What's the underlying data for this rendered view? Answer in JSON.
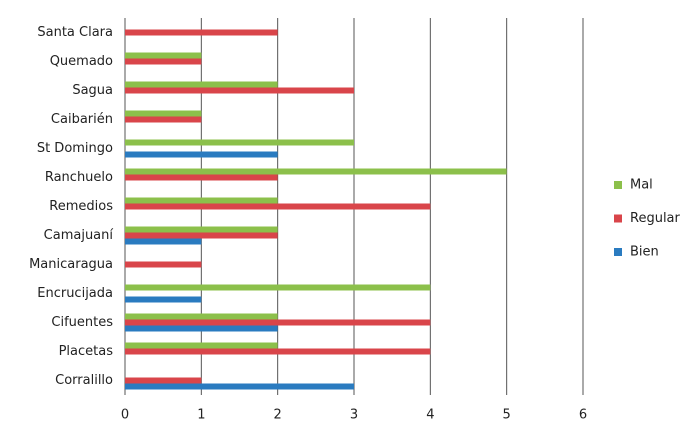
{
  "chart_data": {
    "type": "hbar",
    "categories": [
      "Corralillo",
      "Placetas",
      "Cifuentes",
      "Encrucijada",
      "Manicaragua",
      "Camajuaní",
      "Remedios",
      "Ranchuelo",
      "St Domingo",
      "Caibarién",
      "Sagua",
      "Quemado",
      "Santa Clara"
    ],
    "series": [
      {
        "name": "Bien",
        "color": "#2a7bc0",
        "values": [
          3,
          0,
          2,
          1,
          0,
          1,
          0,
          0,
          2,
          0,
          0,
          0,
          0
        ]
      },
      {
        "name": "Regular",
        "color": "#d9454a",
        "values": [
          1,
          4,
          4,
          0,
          1,
          2,
          4,
          2,
          0,
          1,
          3,
          1,
          2
        ]
      },
      {
        "name": "Mal",
        "color": "#8cc04b",
        "values": [
          0,
          2,
          2,
          4,
          0,
          2,
          2,
          5,
          3,
          1,
          2,
          1,
          0
        ]
      }
    ],
    "xlim": [
      0,
      6
    ],
    "xticks": [
      0,
      1,
      2,
      3,
      4,
      5,
      6
    ],
    "grid": true,
    "legend": "right"
  }
}
